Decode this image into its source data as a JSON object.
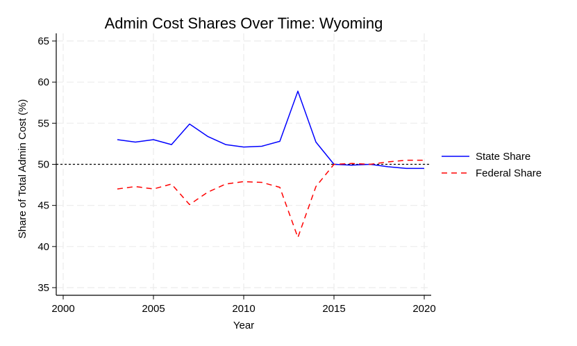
{
  "chart_data": {
    "type": "line",
    "title": "Admin Cost Shares Over Time: Wyoming",
    "xlabel": "Year",
    "ylabel": "Share of Total Admin Cost (%)",
    "xlim": [
      1999.5,
      2020.5
    ],
    "ylim": [
      34,
      66
    ],
    "x_ticks": [
      2000,
      2005,
      2010,
      2015,
      2020
    ],
    "y_ticks": [
      35,
      40,
      45,
      50,
      55,
      60,
      65
    ],
    "grid": true,
    "legend_position": "right",
    "reference_line": {
      "y": 50,
      "style": "dotted",
      "color": "#000000"
    },
    "x": [
      2003,
      2004,
      2005,
      2006,
      2007,
      2008,
      2009,
      2010,
      2011,
      2012,
      2013,
      2014,
      2015,
      2016,
      2017,
      2018,
      2019,
      2020
    ],
    "series": [
      {
        "name": "State Share",
        "color": "#0000ff",
        "dash": "solid",
        "values": [
          53.0,
          52.7,
          53.0,
          52.4,
          54.9,
          53.4,
          52.4,
          52.1,
          52.2,
          52.8,
          58.9,
          52.7,
          50.0,
          49.9,
          50.0,
          49.7,
          49.5,
          49.5
        ]
      },
      {
        "name": "Federal Share",
        "color": "#ff0000",
        "dash": "dashed",
        "values": [
          47.0,
          47.3,
          47.0,
          47.6,
          45.1,
          46.6,
          47.6,
          47.9,
          47.8,
          47.2,
          41.1,
          47.3,
          50.0,
          50.1,
          50.0,
          50.3,
          50.5,
          50.5
        ]
      }
    ]
  }
}
